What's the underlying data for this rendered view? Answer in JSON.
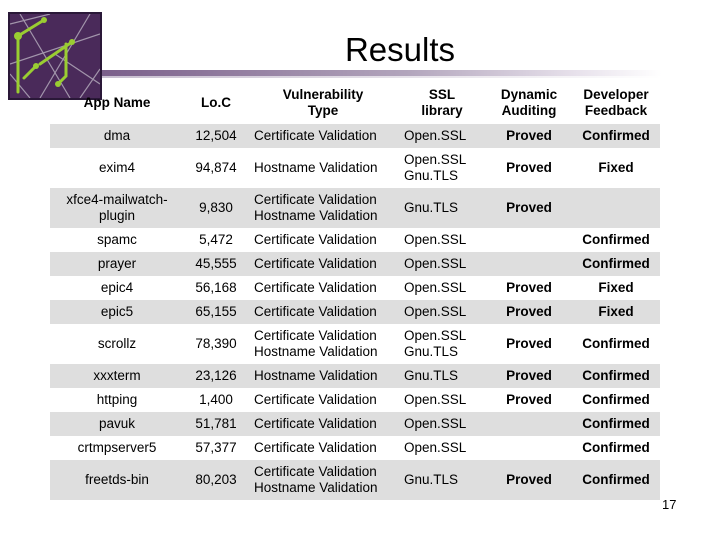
{
  "slide": {
    "title": "Results",
    "page_number": "17"
  },
  "table": {
    "headers": [
      "App Name",
      "Lo.C",
      "Vulnerability\nType",
      "SSL\nlibrary",
      "Dynamic\nAuditing",
      "Developer\nFeedback"
    ],
    "rows": [
      {
        "app": "dma",
        "loc": "12,504",
        "vuln": "Certificate Validation",
        "ssl": "Open.SSL",
        "dynamic": "Proved",
        "feedback": "Confirmed"
      },
      {
        "app": "exim4",
        "loc": "94,874",
        "vuln": "Hostname Validation",
        "ssl": "Open.SSL\nGnu.TLS",
        "dynamic": "Proved",
        "feedback": "Fixed"
      },
      {
        "app": "xfce4-mailwatch-\nplugin",
        "loc": "9,830",
        "vuln": "Certificate Validation\nHostname Validation",
        "ssl": "Gnu.TLS",
        "dynamic": "Proved",
        "feedback": ""
      },
      {
        "app": "spamc",
        "loc": "5,472",
        "vuln": "Certificate Validation",
        "ssl": "Open.SSL",
        "dynamic": "",
        "feedback": "Confirmed"
      },
      {
        "app": "prayer",
        "loc": "45,555",
        "vuln": "Certificate Validation",
        "ssl": "Open.SSL",
        "dynamic": "",
        "feedback": "Confirmed"
      },
      {
        "app": "epic4",
        "loc": "56,168",
        "vuln": "Certificate Validation",
        "ssl": "Open.SSL",
        "dynamic": "Proved",
        "feedback": "Fixed"
      },
      {
        "app": "epic5",
        "loc": "65,155",
        "vuln": "Certificate Validation",
        "ssl": "Open.SSL",
        "dynamic": "Proved",
        "feedback": "Fixed"
      },
      {
        "app": "scrollz",
        "loc": "78,390",
        "vuln": "Certificate Validation\nHostname Validation",
        "ssl": "Open.SSL\nGnu.TLS",
        "dynamic": "Proved",
        "feedback": "Confirmed"
      },
      {
        "app": "xxxterm",
        "loc": "23,126",
        "vuln": "Hostname Validation",
        "ssl": "Gnu.TLS",
        "dynamic": "Proved",
        "feedback": "Confirmed"
      },
      {
        "app": "httping",
        "loc": "1,400",
        "vuln": "Certificate Validation",
        "ssl": "Open.SSL",
        "dynamic": "Proved",
        "feedback": "Confirmed"
      },
      {
        "app": "pavuk",
        "loc": "51,781",
        "vuln": "Certificate Validation",
        "ssl": "Open.SSL",
        "dynamic": "",
        "feedback": "Confirmed"
      },
      {
        "app": "crtmpserver5",
        "loc": "57,377",
        "vuln": "Certificate Validation",
        "ssl": "Open.SSL",
        "dynamic": "",
        "feedback": "Confirmed"
      },
      {
        "app": "freetds-bin",
        "loc": "80,203",
        "vuln": "Certificate Validation\nHostname Validation",
        "ssl": "Gnu.TLS",
        "dynamic": "Proved",
        "feedback": "Confirmed"
      }
    ]
  },
  "colors": {
    "odd_row": "#dedede",
    "even_row": "#ffffff",
    "logo_bg": "#4a2a5a",
    "logo_lines": "#9acd32"
  }
}
